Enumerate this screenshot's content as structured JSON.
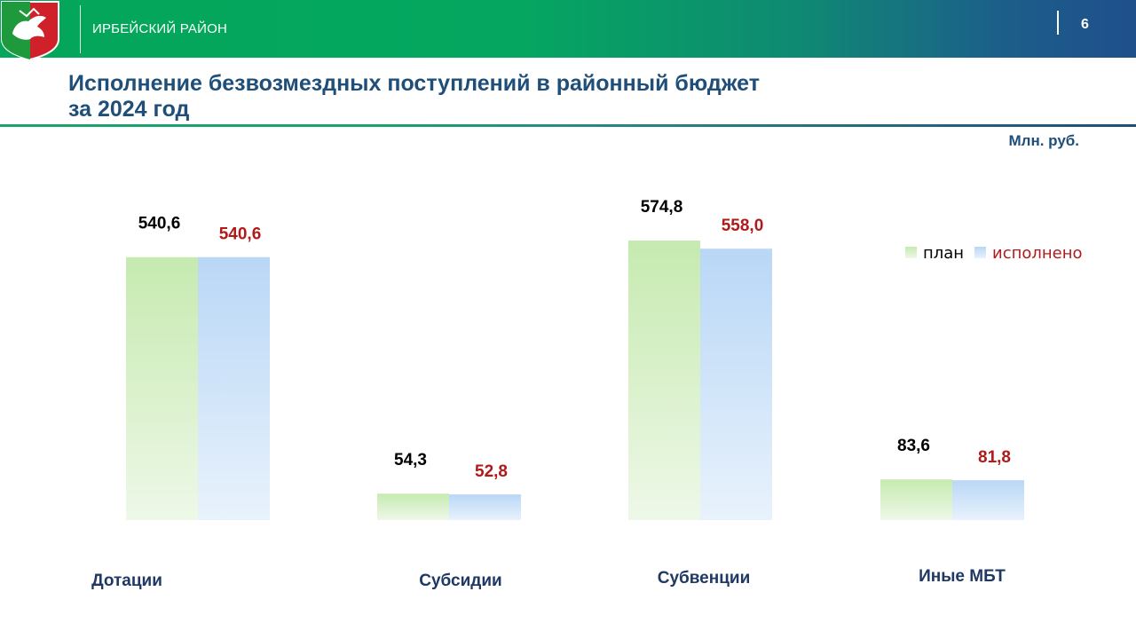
{
  "header": {
    "region_name": "ИРБЕЙСКИЙ РАЙОН",
    "page_number": "6"
  },
  "title": "Исполнение безвозмездных поступлений в районный бюджет за 2024 год",
  "unit": "Млн. руб.",
  "colors": {
    "header_green": "#03a65a",
    "header_blue": "#1f4f8c",
    "title": "#1f4e79",
    "plan_bar": "#c9ecb6",
    "fact_bar": "#bcd9f6",
    "plan_label": "#000000",
    "fact_label": "#b11a1a"
  },
  "chart_data": {
    "type": "bar",
    "categories": [
      "Дотации",
      "Субсидии",
      "Субвенции",
      "Иные МБТ"
    ],
    "series": [
      {
        "name": "план",
        "values": [
          540.6,
          54.3,
          574.8,
          83.6
        ],
        "labels": [
          "540,6",
          "54,3",
          "574,8",
          "83,6"
        ]
      },
      {
        "name": "исполнено",
        "values": [
          540.6,
          52.8,
          558.0,
          81.8
        ],
        "labels": [
          "540,6",
          "52,8",
          "558,0",
          "81,8"
        ]
      }
    ],
    "ylim": [
      0,
      574.8
    ],
    "grid": false,
    "legend_position": "top-right",
    "ylabel": "Млн. руб."
  }
}
